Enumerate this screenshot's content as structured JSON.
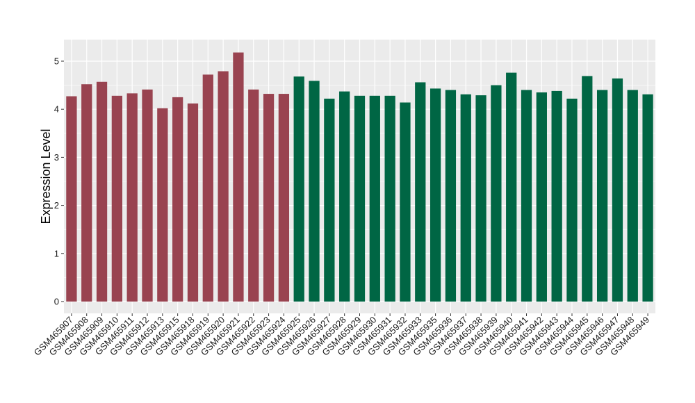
{
  "chart_data": {
    "type": "bar",
    "ylabel": "Expression Level",
    "xlabel": "",
    "ylim": [
      0,
      5.45
    ],
    "y_ticks": [
      "0",
      "1",
      "2",
      "3",
      "4",
      "5"
    ],
    "grid": true,
    "legend": "none",
    "panel_color": "#ebebeb",
    "gridline_color": "#ffffff",
    "categories": [
      "GSM465907",
      "GSM465908",
      "GSM465909",
      "GSM465910",
      "GSM465911",
      "GSM465912",
      "GSM465913",
      "GSM465915",
      "GSM465918",
      "GSM465919",
      "GSM465920",
      "GSM465921",
      "GSM465922",
      "GSM465923",
      "GSM465924",
      "GSM465925",
      "GSM465926",
      "GSM465927",
      "GSM465928",
      "GSM465929",
      "GSM465930",
      "GSM465931",
      "GSM465932",
      "GSM465933",
      "GSM465935",
      "GSM465936",
      "GSM465937",
      "GSM465938",
      "GSM465939",
      "GSM465940",
      "GSM465941",
      "GSM465942",
      "GSM465943",
      "GSM465944",
      "GSM465945",
      "GSM465946",
      "GSM465947",
      "GSM465948",
      "GSM465949"
    ],
    "values": [
      4.27,
      4.52,
      4.57,
      4.28,
      4.33,
      4.41,
      4.02,
      4.25,
      4.12,
      4.72,
      4.79,
      5.18,
      4.41,
      4.32,
      4.32,
      4.68,
      4.59,
      4.22,
      4.37,
      4.28,
      4.28,
      4.28,
      4.14,
      4.56,
      4.43,
      4.4,
      4.31,
      4.29,
      4.5,
      4.76,
      4.4,
      4.35,
      4.38,
      4.22,
      4.69,
      4.4,
      4.64,
      4.4,
      4.31
    ],
    "groups": [
      "A",
      "A",
      "A",
      "A",
      "A",
      "A",
      "A",
      "A",
      "A",
      "A",
      "A",
      "A",
      "A",
      "A",
      "A",
      "B",
      "B",
      "B",
      "B",
      "B",
      "B",
      "B",
      "B",
      "B",
      "B",
      "B",
      "B",
      "B",
      "B",
      "B",
      "B",
      "B",
      "B",
      "B",
      "B",
      "B",
      "B",
      "B",
      "B"
    ],
    "group_colors": {
      "A": "#994350",
      "B": "#006644"
    }
  }
}
